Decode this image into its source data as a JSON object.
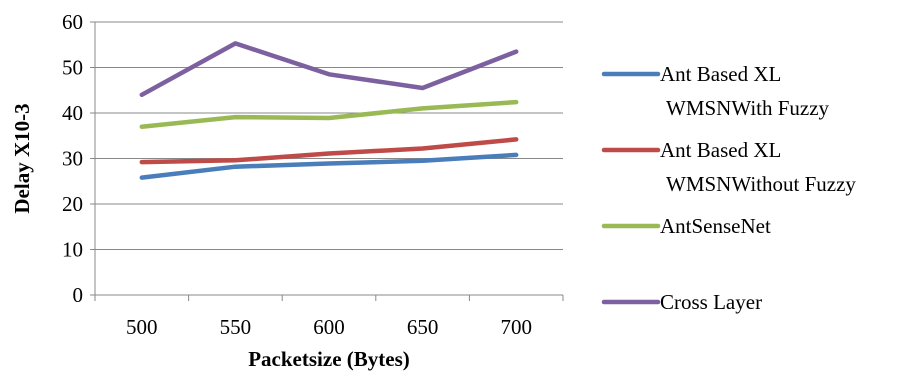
{
  "chart_data": {
    "type": "line",
    "title": "",
    "xlabel": "Packetsize (Bytes)",
    "ylabel": "Delay X10-3",
    "categories": [
      "500",
      "550",
      "600",
      "650",
      "700"
    ],
    "ylim": [
      0,
      60
    ],
    "yticks": [
      0,
      10,
      20,
      30,
      40,
      50,
      60
    ],
    "grid": "horizontal",
    "legend_position": "right",
    "series": [
      {
        "name": "Ant Based XL WMSNWith Fuzzy",
        "name_lines": [
          "Ant Based XL",
          "WMSNWith Fuzzy"
        ],
        "color": "#4a7ebb",
        "values": [
          25.8,
          28.2,
          28.9,
          29.5,
          30.8
        ]
      },
      {
        "name": "Ant Based XL WMSNWithout Fuzzy",
        "name_lines": [
          "Ant Based XL",
          "WMSNWithout Fuzzy"
        ],
        "color": "#be4b48",
        "values": [
          29.2,
          29.6,
          31.1,
          32.2,
          34.2
        ]
      },
      {
        "name": "AntSenseNet",
        "name_lines": [
          "AntSenseNet"
        ],
        "color": "#98b954",
        "values": [
          37.0,
          39.1,
          38.9,
          41.0,
          42.4
        ]
      },
      {
        "name": "Cross Layer",
        "name_lines": [
          "Cross Layer"
        ],
        "color": "#7d60a0",
        "values": [
          44.0,
          55.3,
          48.5,
          45.5,
          53.5
        ]
      }
    ]
  }
}
